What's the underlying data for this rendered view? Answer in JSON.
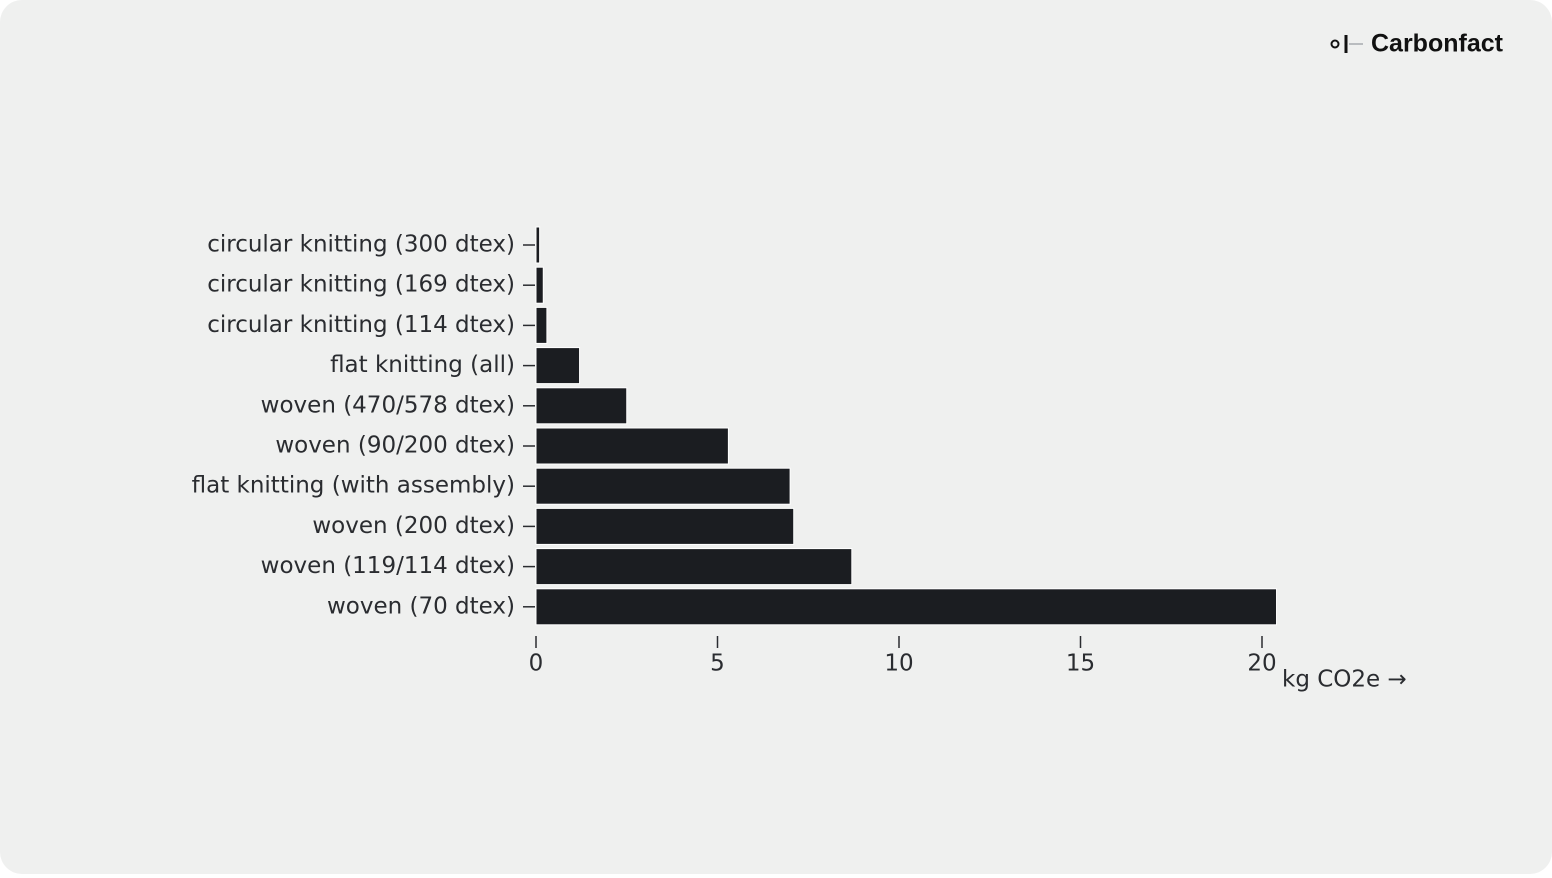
{
  "brand": "Carbonfact",
  "chart_data": {
    "type": "bar",
    "categories": [
      "circular knitting (300 dtex)",
      "circular knitting (169 dtex)",
      "circular knitting (114 dtex)",
      "flat knitting (all)",
      "woven (470/578 dtex)",
      "woven (90/200 dtex)",
      "flat knitting (with assembly)",
      "woven (200 dtex)",
      "woven (119/114 dtex)",
      "woven (70 dtex)"
    ],
    "values": [
      0.1,
      0.2,
      0.3,
      1.2,
      2.5,
      5.3,
      7.0,
      7.1,
      8.7,
      20.4
    ],
    "color": "#1b1d21",
    "x_label": "kg CO2e →",
    "xlim": [
      0,
      20
    ],
    "xticks": [
      0,
      5,
      10,
      15,
      20
    ]
  }
}
